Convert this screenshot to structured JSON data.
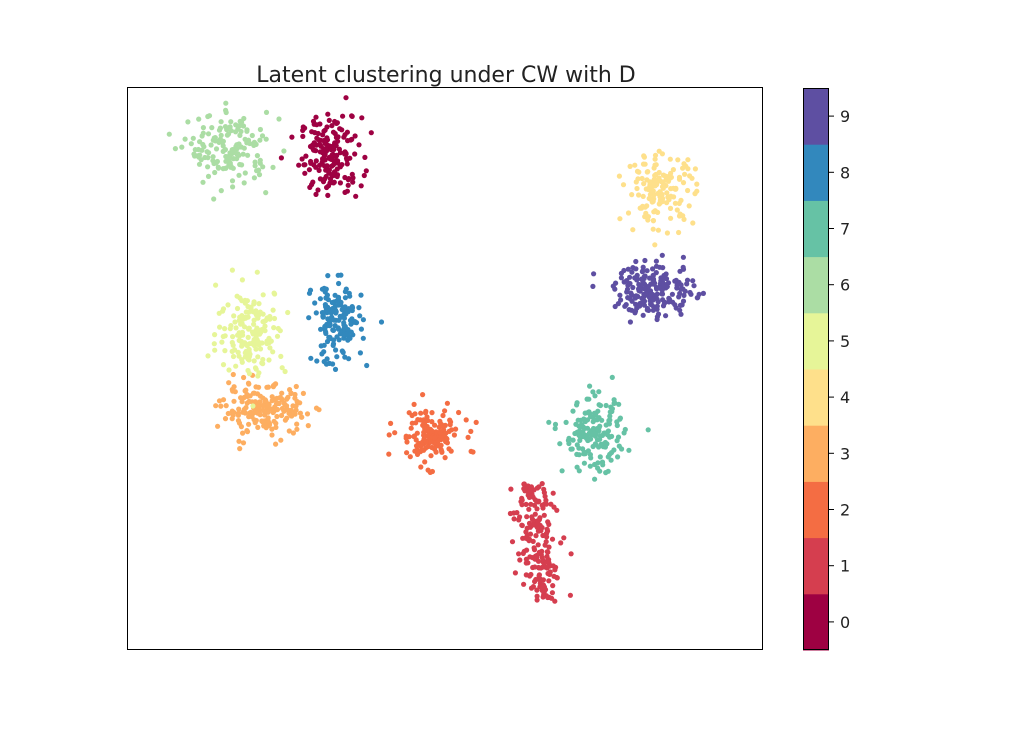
{
  "chart_data": {
    "type": "scatter",
    "title": "Latent clustering under CW with D",
    "xlabel": "",
    "ylabel": "",
    "xlim": [
      0,
      100
    ],
    "ylim": [
      0,
      100
    ],
    "axis_ticks_shown": false,
    "grid": false,
    "colorbar": {
      "placement": "right",
      "ticks": [
        "0",
        "1",
        "2",
        "3",
        "4",
        "5",
        "6",
        "7",
        "8",
        "9"
      ],
      "colors": [
        "#9e0142",
        "#d53e4f",
        "#f46d43",
        "#fdae61",
        "#fee08b",
        "#e6f598",
        "#abdda4",
        "#66c2a5",
        "#3288bd",
        "#5e4fa2"
      ]
    },
    "clusters": [
      {
        "label": "0",
        "center": [
          32,
          88
        ],
        "spread": [
          3.2,
          4.6
        ],
        "n": 180
      },
      {
        "label": "1",
        "center": [
          64.5,
          19
        ],
        "spread": [
          2.2,
          10.5
        ],
        "n": 200,
        "shape": "elongated"
      },
      {
        "label": "2",
        "center": [
          47.5,
          38
        ],
        "spread": [
          3.4,
          3.3
        ],
        "n": 150
      },
      {
        "label": "3",
        "center": [
          21.5,
          42.5
        ],
        "spread": [
          4.4,
          3.0
        ],
        "n": 190
      },
      {
        "label": "4",
        "center": [
          84,
          82
        ],
        "spread": [
          3.6,
          4.0
        ],
        "n": 150
      },
      {
        "label": "5",
        "center": [
          19.5,
          56.5
        ],
        "spread": [
          3.6,
          5.2
        ],
        "n": 170
      },
      {
        "label": "6",
        "center": [
          16,
          89
        ],
        "spread": [
          4.2,
          4.2
        ],
        "n": 160
      },
      {
        "label": "7",
        "center": [
          73.5,
          38
        ],
        "spread": [
          3.2,
          4.2
        ],
        "n": 170
      },
      {
        "label": "8",
        "center": [
          33,
          58
        ],
        "spread": [
          2.6,
          4.8
        ],
        "n": 160
      },
      {
        "label": "9",
        "center": [
          83,
          64
        ],
        "spread": [
          4.2,
          3.2
        ],
        "n": 200
      }
    ]
  }
}
